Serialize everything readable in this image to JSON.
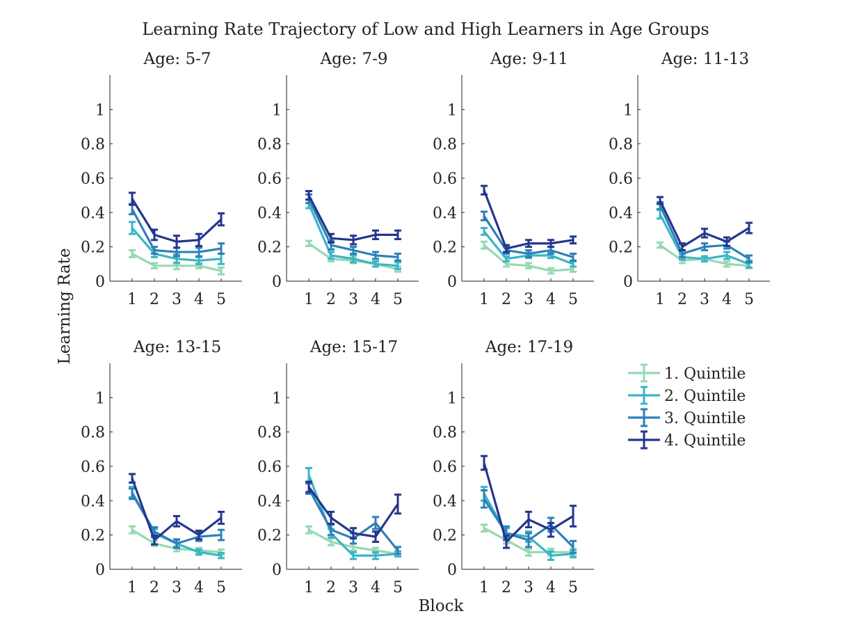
{
  "chart_data": {
    "type": "line",
    "title": "Learning Rate Trajectory of Low and High Learners in Age Groups",
    "xlabel": "Block",
    "ylabel": "Learning Rate",
    "x": [
      1,
      2,
      3,
      4,
      5
    ],
    "ylim": [
      0,
      1.2
    ],
    "yticks": [
      "0",
      "0.2",
      "0.4",
      "0.6",
      "0.8",
      "1"
    ],
    "xticks": [
      "1",
      "2",
      "3",
      "4",
      "5"
    ],
    "legend_position": "right",
    "series_meta": [
      {
        "name": "1. Quintile",
        "color": "#96d8b4"
      },
      {
        "name": "2. Quintile",
        "color": "#3bb5c5"
      },
      {
        "name": "3. Quintile",
        "color": "#2d80b8"
      },
      {
        "name": "4. Quintile",
        "color": "#24368f"
      }
    ],
    "panels": [
      {
        "title": "Age: 5-7",
        "series": [
          {
            "name": "1. Quintile",
            "values": [
              0.16,
              0.09,
              0.09,
              0.09,
              0.06
            ],
            "errors": [
              0.02,
              0.015,
              0.02,
              0.015,
              0.02
            ]
          },
          {
            "name": "2. Quintile",
            "values": [
              0.31,
              0.16,
              0.13,
              0.12,
              0.13
            ],
            "errors": [
              0.035,
              0.02,
              0.025,
              0.02,
              0.03
            ]
          },
          {
            "name": "3. Quintile",
            "values": [
              0.42,
              0.18,
              0.17,
              0.17,
              0.19
            ],
            "errors": [
              0.03,
              0.02,
              0.025,
              0.025,
              0.03
            ]
          },
          {
            "name": "4. Quintile",
            "values": [
              0.48,
              0.27,
              0.23,
              0.24,
              0.36
            ],
            "errors": [
              0.035,
              0.03,
              0.035,
              0.035,
              0.035
            ]
          }
        ]
      },
      {
        "title": "Age: 7-9",
        "series": [
          {
            "name": "1. Quintile",
            "values": [
              0.22,
              0.13,
              0.12,
              0.1,
              0.07
            ],
            "errors": [
              0.015,
              0.015,
              0.015,
              0.015,
              0.015
            ]
          },
          {
            "name": "2. Quintile",
            "values": [
              0.45,
              0.15,
              0.13,
              0.1,
              0.09
            ],
            "errors": [
              0.025,
              0.02,
              0.02,
              0.015,
              0.02
            ]
          },
          {
            "name": "3. Quintile",
            "values": [
              0.48,
              0.21,
              0.18,
              0.15,
              0.14
            ],
            "errors": [
              0.025,
              0.025,
              0.02,
              0.02,
              0.02
            ]
          },
          {
            "name": "4. Quintile",
            "values": [
              0.5,
              0.25,
              0.24,
              0.27,
              0.27
            ],
            "errors": [
              0.025,
              0.025,
              0.025,
              0.025,
              0.025
            ]
          }
        ]
      },
      {
        "title": "Age: 9-11",
        "series": [
          {
            "name": "1. Quintile",
            "values": [
              0.21,
              0.1,
              0.09,
              0.06,
              0.07
            ],
            "errors": [
              0.02,
              0.015,
              0.015,
              0.015,
              0.015
            ]
          },
          {
            "name": "2. Quintile",
            "values": [
              0.29,
              0.13,
              0.15,
              0.15,
              0.1
            ],
            "errors": [
              0.02,
              0.015,
              0.015,
              0.015,
              0.015
            ]
          },
          {
            "name": "3. Quintile",
            "values": [
              0.38,
              0.18,
              0.16,
              0.18,
              0.14
            ],
            "errors": [
              0.025,
              0.02,
              0.02,
              0.02,
              0.02
            ]
          },
          {
            "name": "4. Quintile",
            "values": [
              0.53,
              0.19,
              0.22,
              0.22,
              0.24
            ],
            "errors": [
              0.025,
              0.02,
              0.02,
              0.02,
              0.02
            ]
          }
        ]
      },
      {
        "title": "Age: 11-13",
        "series": [
          {
            "name": "1. Quintile",
            "values": [
              0.21,
              0.12,
              0.13,
              0.1,
              0.09
            ],
            "errors": [
              0.015,
              0.015,
              0.015,
              0.015,
              0.015
            ]
          },
          {
            "name": "2. Quintile",
            "values": [
              0.39,
              0.14,
              0.13,
              0.15,
              0.1
            ],
            "errors": [
              0.025,
              0.015,
              0.015,
              0.02,
              0.02
            ]
          },
          {
            "name": "3. Quintile",
            "values": [
              0.44,
              0.16,
              0.2,
              0.21,
              0.13
            ],
            "errors": [
              0.02,
              0.02,
              0.02,
              0.02,
              0.02
            ]
          },
          {
            "name": "4. Quintile",
            "values": [
              0.47,
              0.2,
              0.28,
              0.23,
              0.31
            ],
            "errors": [
              0.02,
              0.02,
              0.025,
              0.025,
              0.03
            ]
          }
        ]
      },
      {
        "title": "Age: 13-15",
        "series": [
          {
            "name": "1. Quintile",
            "values": [
              0.23,
              0.15,
              0.12,
              0.11,
              0.1
            ],
            "errors": [
              0.02,
              0.015,
              0.015,
              0.015,
              0.015
            ]
          },
          {
            "name": "2. Quintile",
            "values": [
              0.45,
              0.21,
              0.15,
              0.1,
              0.08
            ],
            "errors": [
              0.03,
              0.025,
              0.02,
              0.015,
              0.015
            ]
          },
          {
            "name": "3. Quintile",
            "values": [
              0.44,
              0.22,
              0.15,
              0.19,
              0.2
            ],
            "errors": [
              0.03,
              0.025,
              0.025,
              0.025,
              0.03
            ]
          },
          {
            "name": "4. Quintile",
            "values": [
              0.53,
              0.17,
              0.28,
              0.2,
              0.3
            ],
            "errors": [
              0.025,
              0.025,
              0.03,
              0.025,
              0.035
            ]
          }
        ]
      },
      {
        "title": "Age: 15-17",
        "series": [
          {
            "name": "1. Quintile",
            "values": [
              0.23,
              0.16,
              0.13,
              0.11,
              0.09
            ],
            "errors": [
              0.02,
              0.02,
              0.02,
              0.015,
              0.015
            ]
          },
          {
            "name": "2. Quintile",
            "values": [
              0.55,
              0.21,
              0.08,
              0.08,
              0.09
            ],
            "errors": [
              0.04,
              0.025,
              0.02,
              0.02,
              0.015
            ]
          },
          {
            "name": "3. Quintile",
            "values": [
              0.47,
              0.23,
              0.18,
              0.27,
              0.11
            ],
            "errors": [
              0.03,
              0.03,
              0.03,
              0.035,
              0.02
            ]
          },
          {
            "name": "4. Quintile",
            "values": [
              0.48,
              0.3,
              0.21,
              0.19,
              0.38
            ],
            "errors": [
              0.03,
              0.035,
              0.03,
              0.03,
              0.055
            ]
          }
        ]
      },
      {
        "title": "Age: 17-19",
        "series": [
          {
            "name": "1. Quintile",
            "values": [
              0.24,
              0.17,
              0.1,
              0.1,
              0.1
            ],
            "errors": [
              0.02,
              0.02,
              0.02,
              0.02,
              0.02
            ]
          },
          {
            "name": "2. Quintile",
            "values": [
              0.44,
              0.21,
              0.19,
              0.08,
              0.09
            ],
            "errors": [
              0.04,
              0.03,
              0.03,
              0.025,
              0.02
            ]
          },
          {
            "name": "3. Quintile",
            "values": [
              0.41,
              0.21,
              0.17,
              0.26,
              0.13
            ],
            "errors": [
              0.05,
              0.04,
              0.04,
              0.04,
              0.035
            ]
          },
          {
            "name": "4. Quintile",
            "values": [
              0.62,
              0.16,
              0.29,
              0.23,
              0.31
            ],
            "errors": [
              0.04,
              0.035,
              0.045,
              0.04,
              0.06
            ]
          }
        ]
      }
    ]
  }
}
